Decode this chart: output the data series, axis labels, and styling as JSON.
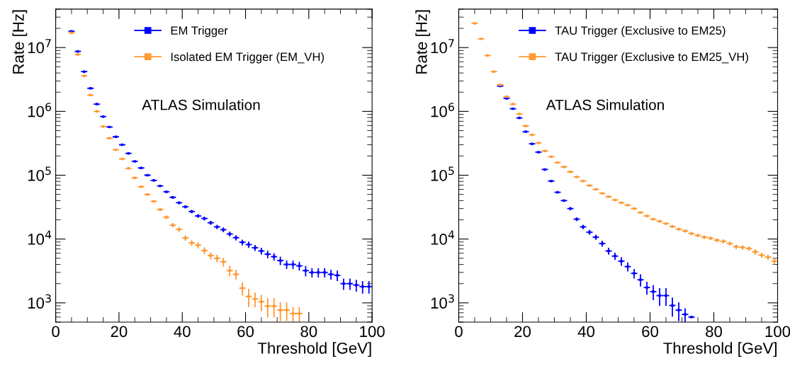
{
  "chart_data": [
    {
      "type": "scatter",
      "xlabel": "Threshold [GeV]",
      "ylabel": "Rate [Hz]",
      "log": "y",
      "legend": "top",
      "marker": "square",
      "grid": false,
      "annotations": [
        "ATLAS Simulation"
      ],
      "xlim": [
        0,
        100
      ],
      "xticks": [
        0,
        20,
        40,
        60,
        80,
        100
      ],
      "ylim": [
        500,
        40000000
      ],
      "yticks": [
        {
          "value": 1000,
          "label": "10$^{3}$"
        },
        {
          "value": 10000,
          "label": "10$^{4}$"
        },
        {
          "value": 100000,
          "label": "10$^{5}$"
        },
        {
          "value": 1000000,
          "label": "10$^{6}$"
        },
        {
          "value": 10000000,
          "label": "10$^{7}$"
        }
      ],
      "series": [
        {
          "name": "EM Trigger",
          "color": "#0000ff",
          "x": [
            5,
            7,
            9,
            11,
            13,
            15,
            17,
            19,
            21,
            23,
            25,
            27,
            29,
            31,
            33,
            35,
            37,
            39,
            41,
            43,
            45,
            47,
            49,
            51,
            53,
            55,
            57,
            59,
            61,
            63,
            65,
            67,
            69,
            71,
            73,
            75,
            77,
            79,
            81,
            83,
            85,
            87,
            89,
            91,
            93,
            95,
            97,
            99
          ],
          "values": [
            18000000,
            8700000,
            4200000,
            2300000,
            1300000,
            830000,
            570000,
            400000,
            300000,
            220000,
            165000,
            130000,
            100000,
            83000,
            68000,
            55000,
            45000,
            37000,
            32000,
            27000,
            23000,
            21000,
            18000,
            15500,
            14000,
            12000,
            10500,
            8900,
            8200,
            7300,
            6500,
            5800,
            5300,
            4600,
            4000,
            4000,
            3800,
            3200,
            3000,
            3000,
            3000,
            2800,
            2700,
            2000,
            2000,
            1900,
            1800,
            1800
          ],
          "errors": [
            null,
            null,
            null,
            null,
            null,
            null,
            null,
            null,
            null,
            null,
            null,
            null,
            null,
            2900,
            2600,
            2300,
            2100,
            1900,
            1800,
            1600,
            1500,
            1400,
            1300,
            1200,
            1200,
            1100,
            1000,
            900,
            900,
            800,
            800,
            800,
            700,
            700,
            600,
            600,
            600,
            600,
            500,
            500,
            500,
            500,
            500,
            400,
            400,
            400,
            400,
            400
          ],
          "xerrors": [
            1,
            1,
            1,
            1,
            1,
            1,
            1,
            1,
            1,
            1,
            1,
            1,
            1,
            1,
            1,
            1,
            1,
            1,
            1,
            1,
            1,
            1,
            1,
            1,
            1,
            1,
            1,
            1,
            1,
            1,
            1,
            1,
            1,
            1,
            1,
            1,
            1,
            1,
            1,
            1,
            1,
            1,
            1,
            1,
            1,
            1,
            1,
            1
          ]
        },
        {
          "name": "Isolated EM Trigger (EM_VH)",
          "color": "#ff9933",
          "x": [
            5,
            7,
            9,
            11,
            13,
            15,
            17,
            19,
            21,
            23,
            25,
            27,
            29,
            31,
            33,
            35,
            37,
            39,
            41,
            43,
            45,
            47,
            49,
            51,
            53,
            55,
            57,
            59,
            61,
            63,
            65,
            67,
            69,
            71,
            73,
            75,
            77
          ],
          "values": [
            17000000,
            7800000,
            3600000,
            1800000,
            1000000,
            580000,
            380000,
            250000,
            180000,
            128000,
            91000,
            66000,
            50000,
            39000,
            29000,
            22000,
            16500,
            14200,
            10400,
            8700,
            8000,
            6600,
            5500,
            5000,
            4400,
            3200,
            2800,
            1700,
            1260,
            1150,
            1040,
            890,
            890,
            770,
            770,
            680,
            680
          ],
          "errors": [
            null,
            null,
            null,
            null,
            null,
            null,
            null,
            null,
            null,
            null,
            3000,
            2600,
            2200,
            2000,
            1700,
            1500,
            1300,
            1200,
            1000,
            900,
            900,
            800,
            700,
            700,
            700,
            600,
            500,
            400,
            400,
            300,
            300,
            300,
            300,
            250,
            250,
            180,
            180
          ],
          "xerrors": [
            1,
            1,
            1,
            1,
            1,
            1,
            1,
            1,
            1,
            1,
            1,
            1,
            1,
            1,
            1,
            1,
            1,
            1,
            1,
            1,
            1,
            1,
            1,
            1,
            1,
            1,
            1,
            1,
            1,
            1,
            1,
            1,
            1,
            1,
            1,
            1,
            1
          ]
        }
      ]
    },
    {
      "type": "scatter",
      "xlabel": "Threshold [GeV]",
      "ylabel": "Rate [Hz]",
      "log": "y",
      "legend": "top",
      "marker": "square",
      "grid": false,
      "annotations": [
        "ATLAS Simulation"
      ],
      "xlim": [
        0,
        100
      ],
      "xticks": [
        0,
        20,
        40,
        60,
        80,
        100
      ],
      "ylim": [
        500,
        40000000
      ],
      "yticks": [
        {
          "value": 1000,
          "label": "10$^{3}$"
        },
        {
          "value": 10000,
          "label": "10$^{4}$"
        },
        {
          "value": 100000,
          "label": "10$^{5}$"
        },
        {
          "value": 1000000,
          "label": "10$^{6}$"
        },
        {
          "value": 10000000,
          "label": "10$^{7}$"
        }
      ],
      "series": [
        {
          "name": "TAU Trigger (Exclusive to EM25)",
          "color": "#0000ff",
          "x": [
            13,
            15,
            17,
            19,
            21,
            23,
            25,
            27,
            29,
            31,
            33,
            35,
            37,
            39,
            41,
            43,
            45,
            47,
            49,
            51,
            53,
            55,
            57,
            59,
            61,
            63,
            65,
            67,
            69,
            71,
            73
          ],
          "values": [
            2500000,
            1600000,
            1100000,
            790000,
            480000,
            310000,
            230000,
            123000,
            81000,
            54000,
            40000,
            30000,
            20500,
            15500,
            12800,
            10700,
            8500,
            6500,
            5400,
            4500,
            3700,
            2900,
            2300,
            1740,
            1500,
            1300,
            1300,
            910,
            770,
            660,
            600
          ],
          "errors": [
            null,
            null,
            null,
            null,
            null,
            null,
            null,
            null,
            null,
            null,
            null,
            1700,
            1400,
            1200,
            1100,
            1000,
            900,
            800,
            700,
            700,
            600,
            500,
            500,
            400,
            400,
            400,
            400,
            300,
            250,
            160,
            null
          ],
          "xerrors": [
            1,
            1,
            1,
            1,
            1,
            1,
            1,
            1,
            1,
            1,
            1,
            1,
            1,
            1,
            1,
            1,
            1,
            1,
            1,
            1,
            1,
            1,
            1,
            1,
            1,
            1,
            1,
            1,
            1,
            1,
            1
          ]
        },
        {
          "name": "TAU Trigger (Exclusive to EM25_VH)",
          "color": "#ff9933",
          "x": [
            5,
            7,
            9,
            11,
            13,
            15,
            17,
            19,
            21,
            23,
            25,
            27,
            29,
            31,
            33,
            35,
            37,
            39,
            41,
            43,
            45,
            47,
            49,
            51,
            53,
            55,
            57,
            59,
            61,
            63,
            65,
            67,
            69,
            71,
            73,
            75,
            77,
            79,
            81,
            83,
            85,
            87,
            89,
            91,
            93,
            95,
            97,
            99
          ],
          "values": [
            24000000,
            13700000,
            7500000,
            4200000,
            2600000,
            1700000,
            1300000,
            910000,
            590000,
            430000,
            320000,
            240000,
            195000,
            158000,
            135000,
            113000,
            94000,
            81000,
            69000,
            60000,
            52000,
            46000,
            41000,
            37000,
            34000,
            30000,
            26000,
            23000,
            20500,
            19000,
            17500,
            15700,
            14300,
            13400,
            12200,
            11400,
            10700,
            10300,
            9600,
            9200,
            8500,
            7600,
            7400,
            7100,
            6300,
            5600,
            5200,
            4500
          ],
          "errors": [
            null,
            null,
            null,
            null,
            null,
            null,
            null,
            null,
            null,
            null,
            null,
            null,
            null,
            null,
            null,
            null,
            null,
            null,
            null,
            null,
            null,
            null,
            null,
            null,
            null,
            null,
            1100,
            1100,
            1000,
            1000,
            900,
            900,
            800,
            800,
            800,
            700,
            700,
            700,
            700,
            700,
            600,
            600,
            600,
            600,
            600,
            500,
            500,
            500
          ],
          "xerrors": [
            1,
            1,
            1,
            1,
            1,
            1,
            1,
            1,
            1,
            1,
            1,
            1,
            1,
            1,
            1,
            1,
            1,
            1,
            1,
            1,
            1,
            1,
            1,
            1,
            1,
            1,
            1,
            1,
            1,
            1,
            1,
            1,
            1,
            1,
            1,
            1,
            1,
            1,
            1,
            1,
            1,
            1,
            1,
            1,
            1,
            1,
            1,
            1
          ]
        }
      ]
    }
  ]
}
